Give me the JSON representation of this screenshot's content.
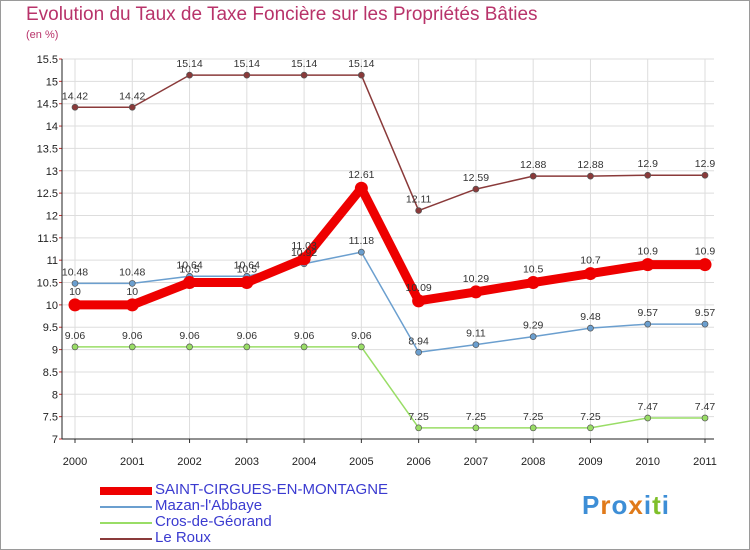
{
  "title": "Evolution du Taux de Taxe Foncière sur les Propriétés Bâties",
  "unit_label": "(en %)",
  "brand": "Proxiti",
  "colors": {
    "title": "#b8336a",
    "legend_text": "#3b3bd0",
    "grid": "#dddddd"
  },
  "chart_data": {
    "type": "line",
    "title": "Evolution du Taux de Taxe Foncière sur les Propriétés Bâties",
    "ylabel": "(en %)",
    "xlabel": "",
    "x": [
      "2000",
      "2001",
      "2002",
      "2003",
      "2004",
      "2005",
      "2006",
      "2007",
      "2008",
      "2009",
      "2010",
      "2011"
    ],
    "ylim": [
      7,
      15.5
    ],
    "yticks": [
      "7",
      "7.5",
      "8",
      "8.5",
      "9",
      "9.5",
      "10",
      "10.5",
      "11",
      "11.5",
      "12",
      "12.5",
      "13",
      "13.5",
      "14",
      "14.5",
      "15",
      "15.5"
    ],
    "grid": true,
    "legend_position": "bottom-left",
    "series": [
      {
        "name": "SAINT-CIRGUES-EN-MONTAGNE",
        "color": "#ee0000",
        "values": [
          10,
          10,
          10.5,
          10.5,
          11.03,
          12.61,
          10.09,
          10.29,
          10.5,
          10.7,
          10.9,
          10.9
        ],
        "labels": [
          "10",
          "10",
          "10.5",
          "10.5",
          "11.03",
          "12.61",
          "10.09",
          "10.29",
          "10.5",
          "10.7",
          "10.9",
          "10.9"
        ]
      },
      {
        "name": "Mazan-l'Abbaye",
        "color": "#6b9fcf",
        "values": [
          10.48,
          10.48,
          10.64,
          10.64,
          10.92,
          11.18,
          8.94,
          9.11,
          9.29,
          9.48,
          9.57,
          9.57
        ],
        "labels": [
          "10.48",
          "10.48",
          "10.64",
          "10.64",
          "10.92",
          "11.18",
          "8.94",
          "9.11",
          "9.29",
          "9.48",
          "9.57",
          "9.57"
        ]
      },
      {
        "name": "Cros-de-Géorand",
        "color": "#99dd66",
        "values": [
          9.06,
          9.06,
          9.06,
          9.06,
          9.06,
          9.06,
          7.25,
          7.25,
          7.25,
          7.25,
          7.47,
          7.47
        ],
        "labels": [
          "9.06",
          "9.06",
          "9.06",
          "9.06",
          "9.06",
          "9.06",
          "7.25",
          "7.25",
          "7.25",
          "7.25",
          "7.47",
          "7.47"
        ]
      },
      {
        "name": "Le Roux",
        "color": "#8a3a3a",
        "values": [
          14.42,
          14.42,
          15.14,
          15.14,
          15.14,
          15.14,
          12.11,
          12.59,
          12.88,
          12.88,
          12.9,
          12.9
        ],
        "labels": [
          "14.42",
          "14.42",
          "15.14",
          "15.14",
          "15.14",
          "15.14",
          "12.11",
          "12.59",
          "12.88",
          "12.88",
          "12.9",
          "12.9"
        ]
      }
    ]
  }
}
